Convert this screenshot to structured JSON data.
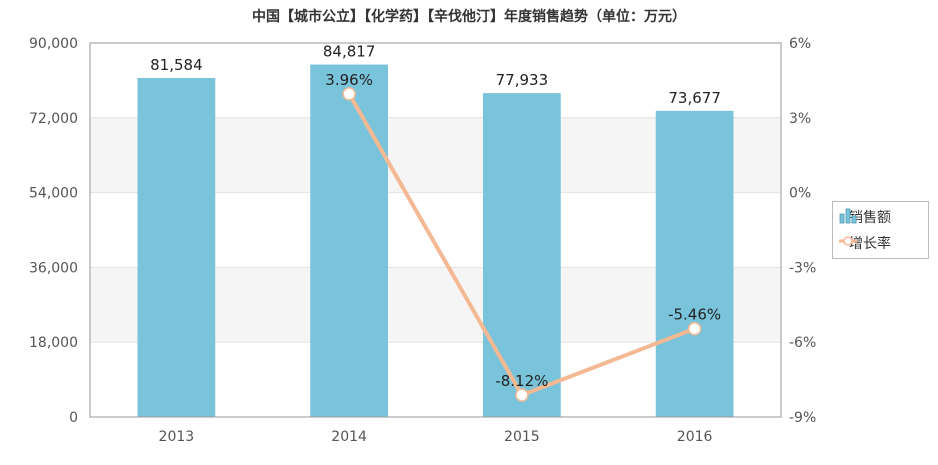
{
  "chart_data": {
    "type": "bar",
    "title": "中国【城市公立】【化学药】【辛伐他汀】年度销售趋势（单位：万元）",
    "categories": [
      "2013",
      "2014",
      "2015",
      "2016"
    ],
    "series": [
      {
        "name": "销售额",
        "type": "bar",
        "values": [
          81584,
          84817,
          77933,
          73677
        ],
        "labels": [
          "81,584",
          "84,817",
          "77,933",
          "73,677"
        ],
        "color": "#7ac4db"
      },
      {
        "name": "增长率",
        "type": "line",
        "axis": "right",
        "values": [
          null,
          3.96,
          -8.12,
          -5.46
        ],
        "labels": [
          "",
          "3.96%",
          "-8.12%",
          "-5.46%"
        ],
        "color": "#f4b993"
      }
    ],
    "y_left": {
      "min": 0,
      "max": 90000,
      "ticks": [
        "0",
        "18,000",
        "36,000",
        "54,000",
        "72,000",
        "90,000"
      ]
    },
    "y_right": {
      "min": -9,
      "max": 6,
      "ticks": [
        "-9%",
        "-6%",
        "-3%",
        "0%",
        "3%",
        "6%"
      ]
    },
    "legend": {
      "position": "right",
      "items": [
        "销售额",
        "增长率"
      ]
    },
    "grid": true
  }
}
